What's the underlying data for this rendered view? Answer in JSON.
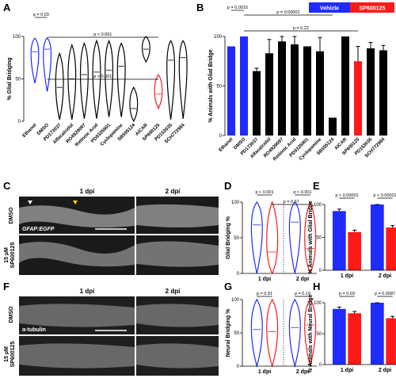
{
  "panels": {
    "A": {
      "letter": "A"
    },
    "B": {
      "letter": "B"
    },
    "C": {
      "letter": "C",
      "col1": "1 dpi",
      "col2": "2 dpi",
      "row1": "DMSO",
      "row2a": "15 µM",
      "row2b": "SP600125",
      "marker": "GFAP:EGFP"
    },
    "D": {
      "letter": "D"
    },
    "E": {
      "letter": "E"
    },
    "F": {
      "letter": "F",
      "col1": "1 dpi",
      "col2": "2 dpi",
      "row1": "DMSO",
      "row2a": "15 µM",
      "row2b": "SP600125",
      "marker": "α-tubulin"
    },
    "G": {
      "letter": "G"
    },
    "H": {
      "letter": "H"
    }
  },
  "legend": {
    "vehicle": "Vehicle",
    "drug": "SP600125"
  },
  "colors": {
    "blue": "#1f2bff",
    "red": "#ff1a1a",
    "black": "#000000"
  },
  "chart_data": [
    {
      "id": "A",
      "type": "violin",
      "ylabel": "% Glial Bridging",
      "ylim": [
        0,
        100
      ],
      "yticks": [
        0,
        50,
        100
      ],
      "categories": [
        "Ethanol",
        "DMSO",
        "PD173037",
        "Alfacalcidol",
        "RO4929097",
        "Retinoic Acid",
        "PD0325901",
        "Cyclopamine",
        "SB505124",
        "AICAR",
        "SP600125",
        "PD153035",
        "SCH772984"
      ],
      "medians": [
        82,
        85,
        40,
        50,
        55,
        58,
        60,
        65,
        15,
        85,
        32,
        72,
        75
      ],
      "ranges": [
        [
          45,
          98
        ],
        [
          35,
          98
        ],
        [
          2,
          80
        ],
        [
          2,
          90
        ],
        [
          3,
          92
        ],
        [
          3,
          95
        ],
        [
          5,
          95
        ],
        [
          5,
          92
        ],
        [
          0,
          40
        ],
        [
          70,
          100
        ],
        [
          15,
          55
        ],
        [
          2,
          95
        ],
        [
          3,
          95
        ]
      ],
      "colors": [
        "blue",
        "blue",
        "black",
        "black",
        "black",
        "black",
        "black",
        "black",
        "black",
        "black",
        "red",
        "black",
        "black"
      ],
      "pvalues": [
        "p = 0.03",
        "p < 0.001",
        "p < 0.001"
      ]
    },
    {
      "id": "B",
      "type": "bar",
      "ylabel": "% Animals with Glial Bridge",
      "ylim": [
        0,
        100
      ],
      "yticks": [
        0,
        50,
        100
      ],
      "categories": [
        "Ethanol",
        "DMSO",
        "PD173037",
        "Alfacalcidol",
        "RO4929097",
        "Retinoic Acid",
        "PD0325901",
        "Cyclopamine",
        "SB505124",
        "AICAR",
        "SP600125",
        "PD153035",
        "SCH772984"
      ],
      "values": [
        90,
        100,
        65,
        83,
        95,
        92,
        90,
        85,
        18,
        100,
        75,
        88,
        86
      ],
      "errors": [
        0,
        0,
        3,
        14,
        5,
        8,
        0,
        14,
        0,
        0,
        15,
        6,
        5
      ],
      "colors": [
        "blue",
        "blue",
        "black",
        "black",
        "black",
        "black",
        "black",
        "black",
        "black",
        "black",
        "red",
        "black",
        "black"
      ],
      "pvalues": [
        "p = 0.0015",
        "p = 0.00001",
        "p = 0.22"
      ]
    },
    {
      "id": "D",
      "type": "violin",
      "ylabel": "Glial Bridging %",
      "ylim": [
        0,
        100
      ],
      "yticks": [
        0,
        50,
        100
      ],
      "groups": [
        "1 dpi",
        "2 dpi"
      ],
      "series": [
        {
          "name": "Vehicle",
          "color": "blue",
          "medians": [
            68,
            72
          ]
        },
        {
          "name": "SP600125",
          "color": "red",
          "medians": [
            30,
            35
          ]
        }
      ],
      "pvalues": [
        "p < 0.001",
        "p < 0.001",
        "p = 0.67"
      ]
    },
    {
      "id": "E",
      "type": "bar",
      "ylabel": "% Animals with Glial Bridge",
      "ylim": [
        0,
        100
      ],
      "yticks": [
        0,
        50,
        100
      ],
      "groups": [
        "1 dpi",
        "2 dpi"
      ],
      "series": [
        {
          "name": "Vehicle",
          "color": "blue",
          "values": [
            90,
            100
          ]
        },
        {
          "name": "SP600125",
          "color": "red",
          "values": [
            58,
            65
          ]
        }
      ],
      "pvalues": [
        "p < 0.00001",
        "p < 0.00001"
      ]
    },
    {
      "id": "G",
      "type": "violin",
      "ylabel": "Neural Bridging %",
      "ylim": [
        0,
        100
      ],
      "yticks": [
        0,
        50,
        100
      ],
      "groups": [
        "1 dpi",
        "2 dpi"
      ],
      "series": [
        {
          "name": "Vehicle",
          "color": "blue",
          "medians": [
            55,
            58
          ]
        },
        {
          "name": "SP600125",
          "color": "red",
          "medians": [
            52,
            62
          ]
        }
      ],
      "pvalues": [
        "p = 0.91",
        "p = 0.19"
      ]
    },
    {
      "id": "H",
      "type": "bar",
      "ylabel": "% Animals with Neural Bridge",
      "ylim": [
        0,
        100
      ],
      "yticks": [
        0,
        50,
        100
      ],
      "groups": [
        "1 dpi",
        "2 dpi"
      ],
      "series": [
        {
          "name": "Vehicle",
          "color": "blue",
          "values": [
            90,
            100
          ]
        },
        {
          "name": "SP600125",
          "color": "red",
          "values": [
            83,
            75
          ]
        }
      ],
      "pvalues": [
        "p = 0.69",
        "p = 0.0087"
      ]
    }
  ]
}
